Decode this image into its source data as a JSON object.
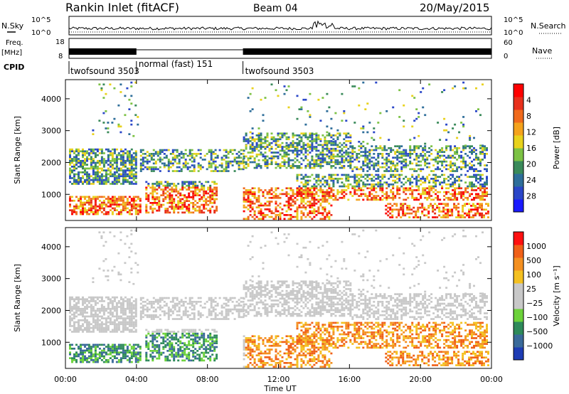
{
  "header": {
    "station": "Rankin Inlet (fitACF)",
    "beam": "Beam 04",
    "date": "20/May/2015"
  },
  "top_panels": {
    "nsky_label": "N.Sky",
    "nsearch_label": "N.Search",
    "freq_label_1": "Freq.",
    "freq_label_2": "[MHz]",
    "nave_label": "Nave",
    "cpid_label": "CPID",
    "noise_ticks_left": [
      "10^5",
      "10^0"
    ],
    "noise_ticks_right": [
      "10^5",
      "10^0"
    ],
    "freq_ticks": [
      "18",
      "8"
    ],
    "nave_ticks": [
      "60",
      "0"
    ]
  },
  "cpid": [
    {
      "label": "twofsound 3503",
      "start_hour": 0
    },
    {
      "label": "normal (fast) 151",
      "start_hour": 4
    },
    {
      "label": "twofsound 3503",
      "start_hour": 10
    }
  ],
  "chart_data": [
    {
      "type": "heatmap",
      "panel": "power",
      "ylabel": "Slant Range [km]",
      "ylim": [
        180,
        4600
      ],
      "yticks": [
        "1000",
        "2000",
        "3000",
        "4000"
      ],
      "xlabel": "Time UT",
      "xticks": [
        "00:00",
        "04:00",
        "08:00",
        "12:00",
        "16:00",
        "20:00",
        "00:00"
      ],
      "xlim_hours": [
        0,
        24
      ],
      "colorbar": {
        "label": "Power [dB]",
        "ticks": [
          "4",
          "8",
          "12",
          "16",
          "20",
          "24",
          "28"
        ],
        "colors": [
          "#1a1aff",
          "#2a46c8",
          "#2e6e9a",
          "#3a8a5a",
          "#7cc244",
          "#e8d21c",
          "#f4a21c",
          "#f06a1c",
          "#e8301c",
          "#ff0000"
        ]
      }
    },
    {
      "type": "heatmap",
      "panel": "velocity",
      "ylabel": "Slant Range [km]",
      "ylim": [
        180,
        4600
      ],
      "yticks": [
        "1000",
        "2000",
        "3000",
        "4000"
      ],
      "xlabel": "Time UT",
      "xticks": [
        "00:00",
        "04:00",
        "08:00",
        "12:00",
        "16:00",
        "20:00",
        "00:00"
      ],
      "xlim_hours": [
        0,
        24
      ],
      "colorbar": {
        "label": "Velocity [m s⁻¹]",
        "ticks": [
          "1000",
          "500",
          "100",
          "25",
          "−25",
          "−100",
          "−500",
          "−1000"
        ],
        "colors": [
          "#1e3cb4",
          "#3a6a9a",
          "#2e8a5a",
          "#6cd23a",
          "#c8c8c8",
          "#c8c8c8",
          "#f4c020",
          "#f49020",
          "#f06018",
          "#ff1010"
        ]
      }
    }
  ]
}
